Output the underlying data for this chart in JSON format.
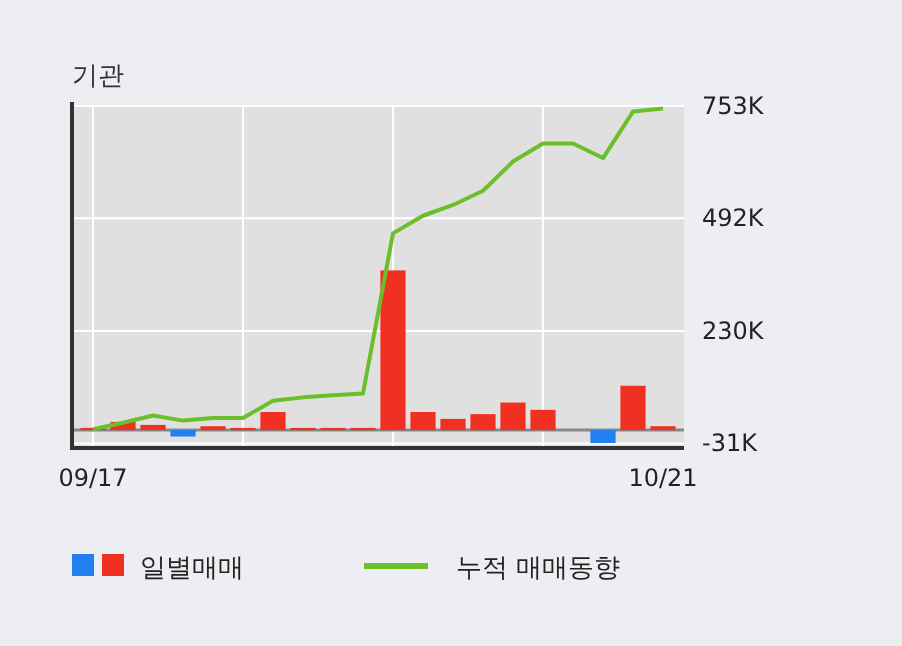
{
  "chart_data": {
    "type": "bar",
    "title": "기관",
    "categories": [
      "09/17",
      null,
      null,
      null,
      null,
      null,
      null,
      null,
      null,
      null,
      null,
      null,
      null,
      null,
      null,
      null,
      null,
      null,
      null,
      "10/21"
    ],
    "series": [
      {
        "name": "일별매매",
        "colors": [
          "#f03020",
          "#f03020",
          "#f03020",
          "#2080f0",
          "#f03020",
          "#f03020",
          "#f03020",
          "#f03020",
          "#f03020",
          "#f03020",
          "#f03020",
          "#f03020",
          "#f03020",
          "#f03020",
          "#f03020",
          "#f03020",
          "#f03020",
          "#2080f0",
          "#f03020",
          "#f03020"
        ],
        "values": [
          5,
          19,
          12,
          -15,
          9,
          5,
          42,
          5,
          5,
          5,
          371,
          42,
          26,
          37,
          64,
          47,
          0,
          -30,
          103,
          9
        ]
      },
      {
        "name": "누적 매매동향",
        "type": "line",
        "color": "#6abf2a",
        "values": [
          2,
          17,
          34,
          22,
          28,
          28,
          68,
          76,
          81,
          85,
          457,
          498,
          523,
          556,
          624,
          666,
          666,
          632,
          740,
          747
        ]
      }
    ],
    "ylim": [
      -37,
      753
    ],
    "yticks": [
      {
        "value": 753,
        "label": "753K"
      },
      {
        "value": 492,
        "label": "492K"
      },
      {
        "value": 230,
        "label": "230K"
      },
      {
        "value": -31,
        "label": "-31K"
      }
    ],
    "grid": true,
    "legend": "bottom"
  }
}
